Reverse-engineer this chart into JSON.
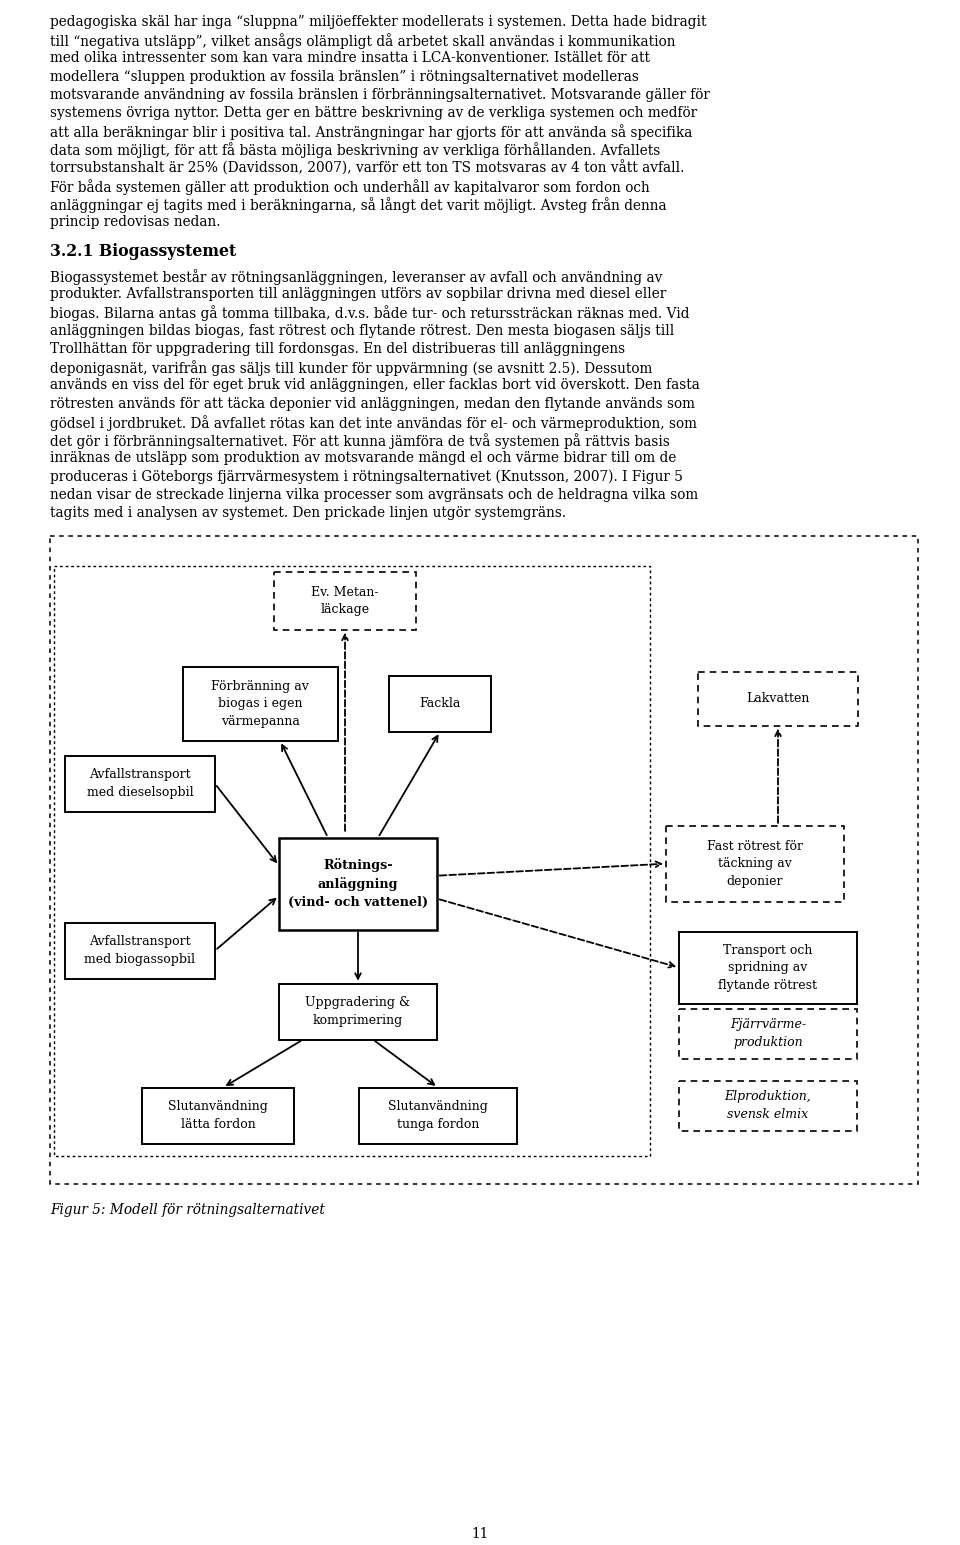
{
  "page_width": 9.6,
  "page_height": 15.45,
  "bg_color": "#ffffff",
  "top_lines": [
    "pedagogiska skäl har inga “sluppna” miljöeffekter modellerats i systemen. Detta hade bidragit",
    "till “negativa utsläpp”, vilket ansågs olämpligt då arbetet skall användas i kommunikation",
    "med olika intressenter som kan vara mindre insatta i LCA-konventioner. Istället för att",
    "modellera “sluppen produktion av fossila bränslen” i rötningsalternativet modelleras",
    "motsvarande användning av fossila bränslen i förbränningsalternativet. Motsvarande gäller för",
    "systemens övriga nyttor. Detta ger en bättre beskrivning av de verkliga systemen och medför",
    "att alla beräkningar blir i positiva tal. Ansträngningar har gjorts för att använda så specifika",
    "data som möjligt, för att få bästa möjliga beskrivning av verkliga förhållanden. Avfallets",
    "torrsubstanshalt är 25% (Davidsson, 2007), varför ett ton TS motsvaras av 4 ton vått avfall.",
    "För båda systemen gäller att produktion och underhåll av kapitalvaror som fordon och",
    "anläggningar ej tagits med i beräkningarna, så långt det varit möjligt. Avsteg från denna",
    "princip redovisas nedan."
  ],
  "section_title": "3.2.1 Biogassystemet",
  "section_lines": [
    "Biogassystemet består av rötningsanläggningen, leveranser av avfall och användning av",
    "produkter. Avfallstransporten till anläggningen utförs av sopbilar drivna med diesel eller",
    "biogas. Bilarna antas gå tomma tillbaka, d.v.s. både tur- och returssträckan räknas med. Vid",
    "anläggningen bildas biogas, fast rötrest och flytande rötrest. Den mesta biogasen säljs till",
    "Trollhättan för uppgradering till fordonsgas. En del distribueras till anläggningens",
    "deponigasnät, varifrån gas säljs till kunder för uppvärmning (se avsnitt 2.5). Dessutom",
    "används en viss del för eget bruk vid anläggningen, eller facklas bort vid överskott. Den fasta",
    "rötresten används för att täcka deponier vid anläggningen, medan den flytande används som",
    "gödsel i jordbruket. Då avfallet rötas kan det inte användas för el- och värmeproduktion, som",
    "det gör i förbränningsalternativet. För att kunna jämföra de två systemen på rättvis basis",
    "inräknas de utsläpp som produktion av motsvarande mängd el och värme bidrar till om de",
    "produceras i Göteborgs fjärrvärmesystem i rötningsalternativet (Knutsson, 2007). I Figur 5",
    "nedan visar de streckade linjerna vilka processer som avgränsats och de heldragna vilka som",
    "tagits med i analysen av systemet. Den prickade linjen utgör systemgräns."
  ],
  "box_metan": [
    "Ev. Metan-",
    "läckage"
  ],
  "box_forbr": [
    "Förbränning av",
    "biogas i egen",
    "värmepanna"
  ],
  "box_fackla": [
    "Fackla"
  ],
  "box_lakvatten": [
    "Lakvatten"
  ],
  "box_avfall1": [
    "Avfallstransport",
    "med dieselsopbil"
  ],
  "box_rot": [
    "Rötnings-",
    "anläggning",
    "(vind- och vattenel)"
  ],
  "box_fast": [
    "Fast rötrest för",
    "täckning av",
    "deponier"
  ],
  "box_avfall2": [
    "Avfallstransport",
    "med biogassopbil"
  ],
  "box_transp": [
    "Transport och",
    "spridning av",
    "flytande rötrest"
  ],
  "box_uppgr": [
    "Uppgradering &",
    "komprimering"
  ],
  "box_slut_l": [
    "Slutanvändning",
    "lätta fordon"
  ],
  "box_slut_t": [
    "Slutanvändning",
    "tunga fordon"
  ],
  "box_fjarr": [
    "Fjärrvärme-",
    "produktion"
  ],
  "box_elprod": [
    "Elproduktion,",
    "svensk elmix"
  ],
  "figure_caption": "Figur 5: Modell för rötningsalternativet",
  "page_number": "11"
}
